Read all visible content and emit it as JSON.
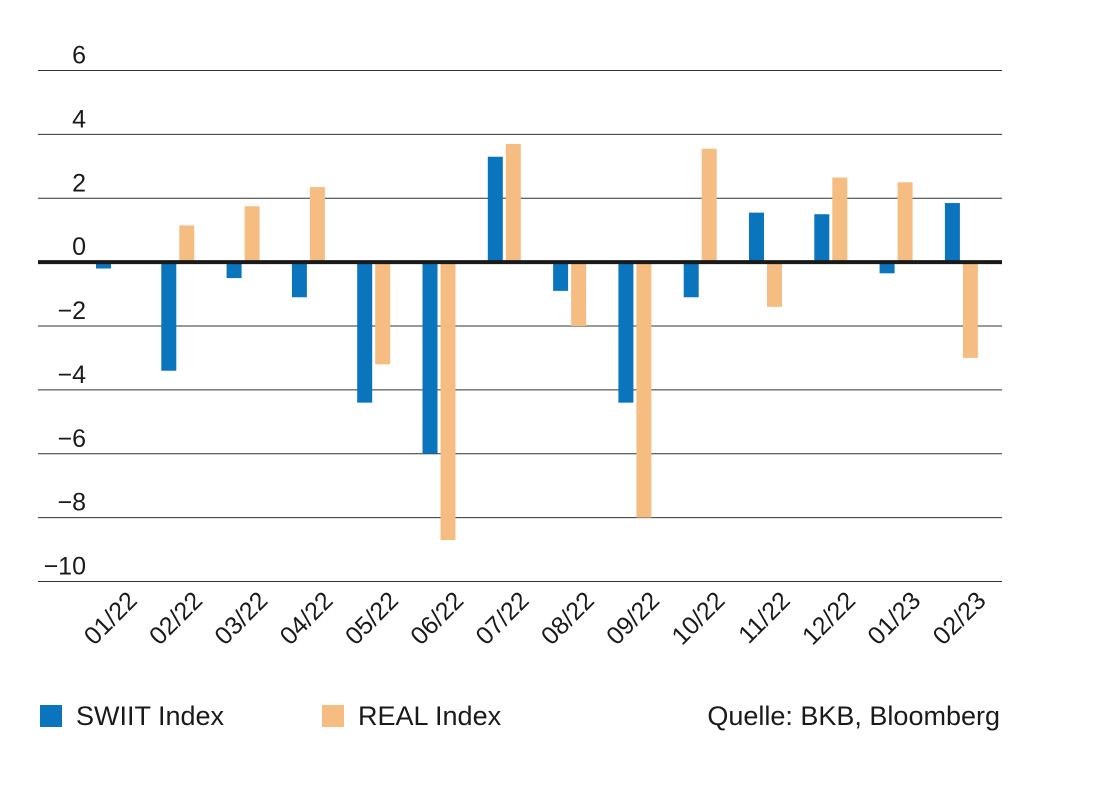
{
  "chart_data": {
    "type": "bar",
    "categories": [
      "01/22",
      "02/22",
      "03/22",
      "04/22",
      "05/22",
      "06/22",
      "07/22",
      "08/22",
      "09/22",
      "10/22",
      "11/22",
      "12/22",
      "01/23",
      "02/23"
    ],
    "series": [
      {
        "name": "SWIIT Index",
        "color": "#0a74bd",
        "values": [
          -0.2,
          -3.4,
          -0.5,
          -1.1,
          -4.4,
          -6.0,
          3.3,
          -0.9,
          -4.4,
          -1.1,
          1.55,
          1.5,
          -0.35,
          1.85
        ]
      },
      {
        "name": "REAL Index",
        "color": "#f5bd82",
        "values": [
          0.05,
          1.15,
          1.75,
          2.35,
          -3.2,
          -8.7,
          3.7,
          -2.0,
          -8.0,
          3.55,
          -1.4,
          2.65,
          2.5,
          -3.0
        ]
      }
    ],
    "yticks": [
      "6",
      "4",
      "2",
      "0",
      "−2",
      "−4",
      "−6",
      "−8",
      "−10"
    ],
    "ytick_values": [
      6,
      4,
      2,
      0,
      -2,
      -4,
      -6,
      -8,
      -10
    ],
    "ylim": [
      -10,
      6
    ],
    "grid": true,
    "legend_position": "bottom-left"
  },
  "legend": {
    "items": [
      {
        "label": "SWIIT Index",
        "color": "#0a74bd"
      },
      {
        "label": "REAL Index",
        "color": "#f5bd82"
      }
    ],
    "source": "Quelle: BKB, Bloomberg"
  }
}
